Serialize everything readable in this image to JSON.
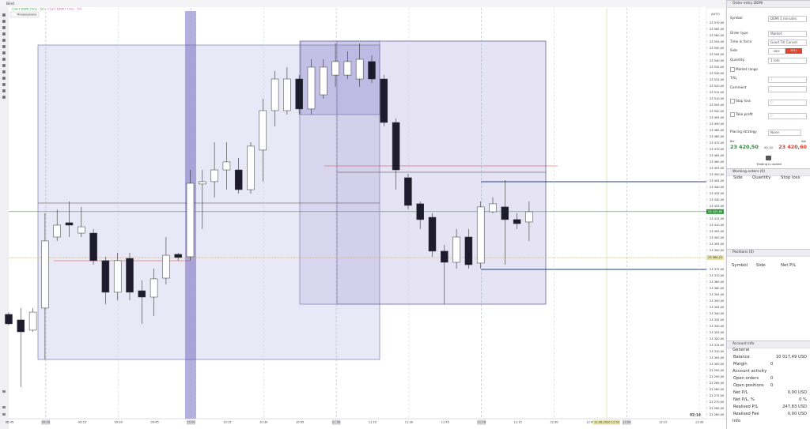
{
  "window": {
    "title": "Bind"
  },
  "chart": {
    "legend": [
      "Chart DEMI Time - 5m",
      "Chart DEMO Time - 5m"
    ],
    "timesessions_button": "Timesessions",
    "price_axis": {
      "mode": "AUTO",
      "ylim": [
        23256.75,
        23579.25
      ],
      "ticks": [
        {
          "value": 23570,
          "label": "23 570,00"
        },
        {
          "value": 23565,
          "label": "23 565,00"
        },
        {
          "value": 23560,
          "label": "23 560,00"
        },
        {
          "value": 23555,
          "label": "23 555,00"
        },
        {
          "value": 23550,
          "label": "23 550,00"
        },
        {
          "value": 23545,
          "label": "23 545,00"
        },
        {
          "value": 23540,
          "label": "23 540,00"
        },
        {
          "value": 23535,
          "label": "23 535,00"
        },
        {
          "value": 23530,
          "label": "23 530,00"
        },
        {
          "value": 23525,
          "label": "23 525,00"
        },
        {
          "value": 23520,
          "label": "23 520,00"
        },
        {
          "value": 23515,
          "label": "23 515,00"
        },
        {
          "value": 23510,
          "label": "23 510,00"
        },
        {
          "value": 23505,
          "label": "23 505,00"
        },
        {
          "value": 23500,
          "label": "23 500,00"
        },
        {
          "value": 23495,
          "label": "23 495,00"
        },
        {
          "value": 23490,
          "label": "23 490,00"
        },
        {
          "value": 23485,
          "label": "23 485,00"
        },
        {
          "value": 23480,
          "label": "23 480,00"
        },
        {
          "value": 23475,
          "label": "23 475,00"
        },
        {
          "value": 23470,
          "label": "23 470,00"
        },
        {
          "value": 23465,
          "label": "23 465,00"
        },
        {
          "value": 23460,
          "label": "23 460,00"
        },
        {
          "value": 23455,
          "label": "23 455,00"
        },
        {
          "value": 23450,
          "label": "23 450,00"
        },
        {
          "value": 23445,
          "label": "23 445,00"
        },
        {
          "value": 23440,
          "label": "23 440,00"
        },
        {
          "value": 23435,
          "label": "23 435,00"
        },
        {
          "value": 23430,
          "label": "23 430,00"
        },
        {
          "value": 23425,
          "label": "23 425,00"
        },
        {
          "value": 23415,
          "label": "23 415,00"
        },
        {
          "value": 23410,
          "label": "23 410,00"
        },
        {
          "value": 23405,
          "label": "23 405,00"
        },
        {
          "value": 23400,
          "label": "23 400,00"
        },
        {
          "value": 23395,
          "label": "23 395,00"
        },
        {
          "value": 23390,
          "label": "23 390,00"
        },
        {
          "value": 23375,
          "label": "23 375,00"
        },
        {
          "value": 23370,
          "label": "23 370,00"
        },
        {
          "value": 23365,
          "label": "23 365,00"
        },
        {
          "value": 23360,
          "label": "23 360,00"
        },
        {
          "value": 23355,
          "label": "23 355,00"
        },
        {
          "value": 23350,
          "label": "23 350,00"
        },
        {
          "value": 23345,
          "label": "23 345,00"
        },
        {
          "value": 23340,
          "label": "23 340,00"
        },
        {
          "value": 23335,
          "label": "23 335,00"
        },
        {
          "value": 23330,
          "label": "23 330,00"
        },
        {
          "value": 23325,
          "label": "23 325,00"
        },
        {
          "value": 23320,
          "label": "23 320,00"
        },
        {
          "value": 23315,
          "label": "23 315,00"
        },
        {
          "value": 23310,
          "label": "23 310,00"
        },
        {
          "value": 23305,
          "label": "23 305,00"
        },
        {
          "value": 23300,
          "label": "23 300,00"
        },
        {
          "value": 23295,
          "label": "23 295,00"
        },
        {
          "value": 23290,
          "label": "23 290,00"
        },
        {
          "value": 23285,
          "label": "23 285,00"
        },
        {
          "value": 23280,
          "label": "23 280,00"
        },
        {
          "value": 23275,
          "label": "23 275,00"
        },
        {
          "value": 23270,
          "label": "23 270,00"
        },
        {
          "value": 23265,
          "label": "23 265,00"
        },
        {
          "value": 23260,
          "label": "23 260,00"
        }
      ],
      "last_price": {
        "value": 23420.6,
        "label": "23 420,60"
      },
      "marker": {
        "value": 23384.22,
        "label": "23 384,22"
      }
    },
    "time_axis": {
      "labels": [
        "08:45",
        "09:00",
        "09:15",
        "09:30",
        "09:45",
        "10:00",
        "10:15",
        "10:30",
        "10:45",
        "11:00",
        "11:15",
        "11:30",
        "11:45",
        "12:00",
        "12:15",
        "12:30",
        "12:45",
        "13:00",
        "13:15",
        "13:30"
      ],
      "cursor_label": "11.06.2020 12:52"
    },
    "clock": "02:14",
    "candles": [
      [
        23339.3,
        23341.1,
        23330.5,
        23331.8
      ],
      [
        23334.9,
        23344.3,
        23281.8,
        23325.5
      ],
      [
        23326.8,
        23344.3,
        23325.5,
        23341.1
      ],
      [
        23344.3,
        23419.3,
        23303.6,
        23397.4
      ],
      [
        23400.5,
        23422.4,
        23397.4,
        23409.9
      ],
      [
        23411.8,
        23428.6,
        23400.5,
        23409.9
      ],
      [
        23403.6,
        23424.3,
        23400.5,
        23408.6
      ],
      [
        23403.6,
        23406.8,
        23378.6,
        23381.8
      ],
      [
        23381.8,
        23384.9,
        23347.4,
        23356.8
      ],
      [
        23356.8,
        23388,
        23350.5,
        23381.8
      ],
      [
        23383.6,
        23388,
        23350.5,
        23356.8
      ],
      [
        23358,
        23366.1,
        23331.8,
        23353
      ],
      [
        23353,
        23375.5,
        23338,
        23367.4
      ],
      [
        23368,
        23400.5,
        23363,
        23386.1
      ],
      [
        23386.8,
        23388,
        23381.8,
        23384.3
      ],
      [
        23384.9,
        23453.6,
        23381.8,
        23443
      ],
      [
        23442.4,
        23453.6,
        23406.8,
        23444.3
      ],
      [
        23444.3,
        23475.5,
        23431.8,
        23453.6
      ],
      [
        23453.6,
        23475.5,
        23438,
        23459.9
      ],
      [
        23453.6,
        23463,
        23434.9,
        23438
      ],
      [
        23438,
        23475.5,
        23434.9,
        23472.4
      ],
      [
        23469.3,
        23509.9,
        23444.3,
        23500.5
      ],
      [
        23500.5,
        23531.8,
        23488,
        23525.5
      ],
      [
        23500.5,
        23534.9,
        23497.4,
        23525.5
      ],
      [
        23525.5,
        23528.6,
        23497.4,
        23501.8
      ],
      [
        23501.8,
        23541.1,
        23497.4,
        23534.9
      ],
      [
        23513,
        23541.1,
        23509.9,
        23534.9
      ],
      [
        23528.6,
        23553.6,
        23519.3,
        23539.3
      ],
      [
        23528.6,
        23547.4,
        23525.5,
        23539.3
      ],
      [
        23525.5,
        23553.6,
        23519.3,
        23541.1
      ],
      [
        23539.3,
        23544.3,
        23522.4,
        23525.5
      ],
      [
        23525.5,
        23528.6,
        23488,
        23491.1
      ],
      [
        23491.1,
        23494.3,
        23438,
        23453.6
      ],
      [
        23447.4,
        23450.5,
        23422.4,
        23425.5
      ],
      [
        23426.8,
        23428.6,
        23406.8,
        23414.3
      ],
      [
        23416.1,
        23419.3,
        23384.9,
        23389.3
      ],
      [
        23389.3,
        23394.3,
        23347.4,
        23380.5
      ],
      [
        23380.5,
        23406.8,
        23375.5,
        23400.5
      ],
      [
        23400.5,
        23406.8,
        23375.5,
        23378.6
      ],
      [
        23379.9,
        23428.6,
        23375.5,
        23424.3
      ],
      [
        23420.5,
        23431.8,
        23419.3,
        23426.8
      ],
      [
        23424.3,
        23445.5,
        23378.6,
        23414.3
      ],
      [
        23414.3,
        23419.3,
        23406.8,
        23411.1
      ],
      [
        23412.4,
        23428.6,
        23397.4,
        23420.5
      ]
    ]
  },
  "order_entry": {
    "title": "Order entry DEMI",
    "fields": [
      {
        "label": "Symbol",
        "value": "DEMI 1 minutes"
      },
      {
        "label": "Order type",
        "value": "Market"
      },
      {
        "label": "Time in force",
        "value": "Good Till Cancel"
      }
    ],
    "side": {
      "label": "Side",
      "buy": "BUY",
      "sell": "SELL"
    },
    "quantity": {
      "label": "Quantity",
      "value": "1 lots"
    },
    "market_range": "Market range",
    "trsl": {
      "label": "TrSL",
      "value": "1"
    },
    "comment": "Comment",
    "stop_loss": {
      "label": "Stop loss",
      "value": "0"
    },
    "take_profit": {
      "label": "Take profit",
      "value": "0"
    },
    "placing_strategy": {
      "label": "Placing strategy",
      "value": "None"
    },
    "bid": {
      "label": "Bid",
      "value": "23 420,50"
    },
    "spread": "00,10",
    "ask": {
      "label": "Ask",
      "value": "23 420,60"
    },
    "status": "Trading is locked"
  },
  "working_orders": {
    "title": "Working orders (0)",
    "columns": [
      "Side",
      "Quantity",
      "Stop loss"
    ]
  },
  "positions": {
    "title": "Positions (0)",
    "columns": [
      "Symbol",
      "Side",
      "Net P/L"
    ]
  },
  "account_info": {
    "title": "Account info",
    "sections": [
      {
        "title": "General",
        "rows": [
          [
            "Balance",
            "10 017,49 USD"
          ],
          [
            "Margin",
            "0"
          ]
        ]
      },
      {
        "title": "Account activity",
        "rows": [
          [
            "Open orders",
            "0"
          ],
          [
            "Open positions",
            "0"
          ],
          [
            "Net P/L",
            "0,00 USD"
          ],
          [
            "Net P/L, %",
            "0 %"
          ],
          [
            "Realised P/L",
            "247,83 USD"
          ],
          [
            "Realised Fee",
            "0,00 USD"
          ]
        ]
      },
      {
        "title": "Info"
      }
    ]
  }
}
